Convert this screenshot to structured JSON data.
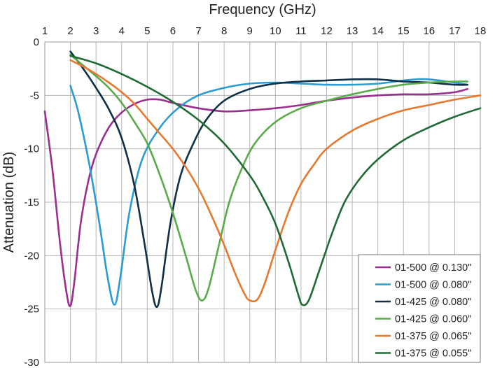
{
  "chart_data": {
    "type": "line",
    "xlabel": "Frequency (GHz)",
    "ylabel": "Attenuation (dB)",
    "xlim": [
      1,
      18
    ],
    "ylim": [
      -30,
      0
    ],
    "xticks": [
      1,
      2,
      3,
      4,
      5,
      6,
      7,
      8,
      9,
      10,
      11,
      12,
      13,
      14,
      15,
      16,
      17,
      18
    ],
    "yticks": [
      0,
      -5,
      -10,
      -15,
      -20,
      -25,
      -30
    ],
    "x_axis_position": "top",
    "grid": {
      "vertical": true,
      "horizontal": true
    },
    "legend_position": "bottom-right",
    "series": [
      {
        "name": "01-500 @ 0.130\"",
        "color": "#9b2f8f",
        "points": [
          [
            1.0,
            -6.5
          ],
          [
            1.3,
            -12.0
          ],
          [
            1.6,
            -19.0
          ],
          [
            1.85,
            -23.5
          ],
          [
            2.0,
            -24.7
          ],
          [
            2.15,
            -22.5
          ],
          [
            2.4,
            -17.0
          ],
          [
            2.7,
            -13.0
          ],
          [
            3.0,
            -10.5
          ],
          [
            3.5,
            -8.0
          ],
          [
            4.0,
            -6.6
          ],
          [
            4.5,
            -5.8
          ],
          [
            5.0,
            -5.4
          ],
          [
            5.5,
            -5.4
          ],
          [
            6.0,
            -5.7
          ],
          [
            7.0,
            -6.2
          ],
          [
            8.0,
            -6.5
          ],
          [
            9.0,
            -6.4
          ],
          [
            10.0,
            -6.2
          ],
          [
            11.0,
            -5.9
          ],
          [
            12.0,
            -5.5
          ],
          [
            13.0,
            -5.2
          ],
          [
            14.0,
            -5.0
          ],
          [
            15.0,
            -4.9
          ],
          [
            16.0,
            -4.9
          ],
          [
            17.0,
            -4.7
          ],
          [
            17.5,
            -4.4
          ]
        ]
      },
      {
        "name": "01-500 @ 0.080\"",
        "color": "#2b9bd3",
        "points": [
          [
            2.0,
            -4.1
          ],
          [
            2.3,
            -6.5
          ],
          [
            2.7,
            -11.0
          ],
          [
            3.1,
            -16.5
          ],
          [
            3.45,
            -22.0
          ],
          [
            3.72,
            -24.6
          ],
          [
            3.95,
            -22.0
          ],
          [
            4.3,
            -16.0
          ],
          [
            4.8,
            -11.0
          ],
          [
            5.5,
            -8.0
          ],
          [
            6.2,
            -6.2
          ],
          [
            7.0,
            -5.0
          ],
          [
            8.0,
            -4.3
          ],
          [
            9.0,
            -3.9
          ],
          [
            10.0,
            -3.8
          ],
          [
            11.0,
            -3.9
          ],
          [
            12.0,
            -4.0
          ],
          [
            13.0,
            -4.0
          ],
          [
            14.0,
            -3.9
          ],
          [
            15.0,
            -3.6
          ],
          [
            15.5,
            -3.5
          ],
          [
            16.0,
            -3.5
          ],
          [
            17.0,
            -3.8
          ],
          [
            17.5,
            -4.0
          ]
        ]
      },
      {
        "name": "01-425 @ 0.080\"",
        "color": "#0e2f45",
        "points": [
          [
            2.0,
            -0.9
          ],
          [
            2.5,
            -2.5
          ],
          [
            3.0,
            -4.3
          ],
          [
            3.5,
            -6.3
          ],
          [
            4.0,
            -9.0
          ],
          [
            4.5,
            -13.5
          ],
          [
            4.9,
            -19.0
          ],
          [
            5.2,
            -23.5
          ],
          [
            5.38,
            -24.8
          ],
          [
            5.55,
            -23.0
          ],
          [
            5.9,
            -17.0
          ],
          [
            6.3,
            -12.5
          ],
          [
            6.8,
            -9.5
          ],
          [
            7.3,
            -7.3
          ],
          [
            8.0,
            -5.5
          ],
          [
            9.0,
            -4.4
          ],
          [
            10.0,
            -3.9
          ],
          [
            11.0,
            -3.7
          ],
          [
            12.0,
            -3.6
          ],
          [
            13.0,
            -3.5
          ],
          [
            14.0,
            -3.5
          ],
          [
            15.0,
            -3.7
          ],
          [
            16.0,
            -3.8
          ],
          [
            17.0,
            -4.0
          ],
          [
            17.5,
            -4.0
          ]
        ]
      },
      {
        "name": "01-425 @ 0.060\"",
        "color": "#5aab4a",
        "points": [
          [
            2.0,
            -1.2
          ],
          [
            2.5,
            -2.2
          ],
          [
            3.0,
            -3.2
          ],
          [
            3.5,
            -4.3
          ],
          [
            4.0,
            -5.7
          ],
          [
            4.5,
            -7.5
          ],
          [
            5.0,
            -9.5
          ],
          [
            5.5,
            -12.5
          ],
          [
            6.0,
            -16.0
          ],
          [
            6.5,
            -20.0
          ],
          [
            6.9,
            -23.3
          ],
          [
            7.15,
            -24.2
          ],
          [
            7.4,
            -23.0
          ],
          [
            7.8,
            -19.0
          ],
          [
            8.2,
            -15.0
          ],
          [
            8.7,
            -11.8
          ],
          [
            9.2,
            -9.5
          ],
          [
            10.0,
            -7.5
          ],
          [
            11.0,
            -6.2
          ],
          [
            12.0,
            -5.5
          ],
          [
            13.0,
            -4.9
          ],
          [
            14.0,
            -4.4
          ],
          [
            15.0,
            -4.0
          ],
          [
            16.0,
            -3.8
          ],
          [
            17.0,
            -3.7
          ],
          [
            17.5,
            -3.7
          ]
        ]
      },
      {
        "name": "01-375 @ 0.065\"",
        "color": "#e6782f",
        "points": [
          [
            2.0,
            -1.7
          ],
          [
            2.5,
            -2.3
          ],
          [
            3.0,
            -3.0
          ],
          [
            3.5,
            -3.8
          ],
          [
            4.0,
            -4.7
          ],
          [
            4.5,
            -5.8
          ],
          [
            5.0,
            -7.2
          ],
          [
            5.5,
            -8.6
          ],
          [
            6.0,
            -10.0
          ],
          [
            6.5,
            -11.7
          ],
          [
            7.0,
            -13.7
          ],
          [
            7.5,
            -16.2
          ],
          [
            8.0,
            -19.0
          ],
          [
            8.4,
            -21.5
          ],
          [
            8.8,
            -23.6
          ],
          [
            9.0,
            -24.2
          ],
          [
            9.3,
            -24.1
          ],
          [
            9.6,
            -22.5
          ],
          [
            10.0,
            -19.5
          ],
          [
            10.5,
            -16.0
          ],
          [
            11.0,
            -13.3
          ],
          [
            11.5,
            -11.5
          ],
          [
            12.0,
            -10.0
          ],
          [
            13.0,
            -8.3
          ],
          [
            14.0,
            -7.2
          ],
          [
            15.0,
            -6.4
          ],
          [
            16.0,
            -5.9
          ],
          [
            17.0,
            -5.4
          ],
          [
            18.0,
            -5.0
          ]
        ]
      },
      {
        "name": "01-375 @ 0.055\"",
        "color": "#1f6b33",
        "points": [
          [
            2.0,
            -1.3
          ],
          [
            3.0,
            -2.0
          ],
          [
            4.0,
            -3.0
          ],
          [
            5.0,
            -4.2
          ],
          [
            6.0,
            -5.6
          ],
          [
            7.0,
            -7.3
          ],
          [
            8.0,
            -9.5
          ],
          [
            9.0,
            -12.5
          ],
          [
            9.5,
            -14.5
          ],
          [
            10.0,
            -17.0
          ],
          [
            10.5,
            -20.5
          ],
          [
            10.9,
            -23.7
          ],
          [
            11.05,
            -24.6
          ],
          [
            11.3,
            -24.2
          ],
          [
            11.7,
            -21.5
          ],
          [
            12.2,
            -18.0
          ],
          [
            12.7,
            -15.0
          ],
          [
            13.3,
            -12.8
          ],
          [
            14.0,
            -11.0
          ],
          [
            15.0,
            -9.2
          ],
          [
            16.0,
            -8.0
          ],
          [
            17.0,
            -7.0
          ],
          [
            18.0,
            -6.2
          ]
        ]
      }
    ]
  }
}
